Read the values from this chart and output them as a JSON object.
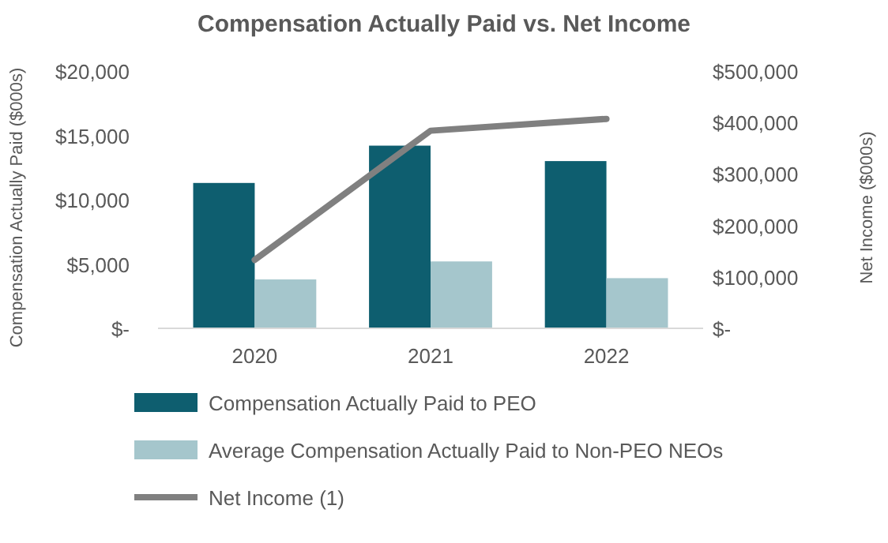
{
  "chart_data": {
    "type": "bar",
    "title": "Compensation Actually Paid vs. Net Income",
    "ylabel": "Compensation Actually Paid ($000s)",
    "y2label": "Net Income ($000s)",
    "categories": [
      "2020",
      "2021",
      "2022"
    ],
    "series": [
      {
        "name": "Compensation Actually Paid to PEO",
        "color": "#0e5e6f",
        "values": [
          11300,
          14200,
          13000
        ]
      },
      {
        "name": "Average Compensation Actually Paid to Non-PEO NEOs",
        "color": "#a5c6cc",
        "values": [
          3800,
          5200,
          3900
        ]
      },
      {
        "name": "Net Income (1)",
        "type": "line",
        "axis": "y2",
        "color": "#808080",
        "values": [
          133000,
          384000,
          407000
        ]
      }
    ],
    "ylim": [
      0,
      20000
    ],
    "yticks": [
      {
        "value": 0,
        "label": "$-"
      },
      {
        "value": 5000,
        "label": "$5,000"
      },
      {
        "value": 10000,
        "label": "$10,000"
      },
      {
        "value": 15000,
        "label": "$15,000"
      },
      {
        "value": 20000,
        "label": "$20,000"
      }
    ],
    "y2lim": [
      0,
      500000
    ],
    "y2ticks": [
      {
        "value": 0,
        "label": "$-"
      },
      {
        "value": 100000,
        "label": "$100,000"
      },
      {
        "value": 200000,
        "label": "$200,000"
      },
      {
        "value": 300000,
        "label": "$300,000"
      },
      {
        "value": 400000,
        "label": "$400,000"
      },
      {
        "value": 500000,
        "label": "$500,000"
      }
    ],
    "legend": "bottom",
    "grid": false
  }
}
